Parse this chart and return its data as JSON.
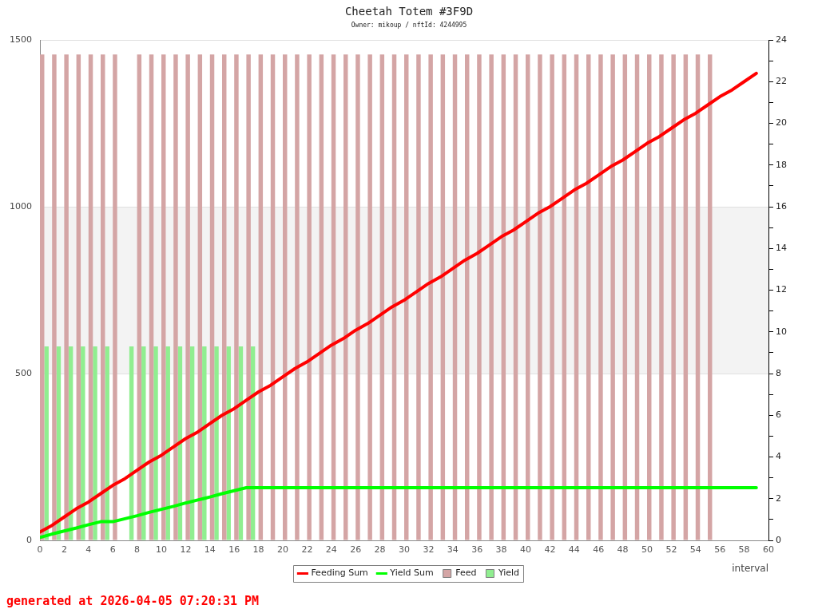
{
  "chart_data": {
    "type": "bar",
    "title": "Cheetah Totem #3F9D",
    "subtitle": "Owner: mikoup / nftId: 4244995",
    "xlabel": "interval",
    "annotations": [
      "generated at 2026-04-05 07:20:31 PM"
    ],
    "xlim": [
      0,
      60
    ],
    "xticks": [
      0,
      2,
      4,
      6,
      8,
      10,
      12,
      14,
      16,
      18,
      20,
      22,
      24,
      26,
      28,
      30,
      32,
      34,
      36,
      38,
      40,
      42,
      44,
      46,
      48,
      50,
      52,
      54,
      56,
      58,
      60
    ],
    "ylim": [
      0,
      1500
    ],
    "yticks": [
      0,
      500,
      1000,
      1500
    ],
    "y2lim": [
      0,
      24
    ],
    "y2ticks": [
      0,
      {
        "value": 1,
        "label": null
      },
      2,
      {
        "value": 3,
        "label": null
      },
      4,
      {
        "value": 5,
        "label": null
      },
      6,
      {
        "value": 7,
        "label": null
      },
      8,
      {
        "value": 9,
        "label": null
      },
      10,
      {
        "value": 11,
        "label": null
      },
      12,
      {
        "value": 13,
        "label": null
      },
      14,
      {
        "value": 15,
        "label": null
      },
      16,
      {
        "value": 17,
        "label": null
      },
      18,
      {
        "value": 19,
        "label": null
      },
      20,
      {
        "value": 21,
        "label": null
      },
      22,
      {
        "value": 23,
        "label": null
      },
      24
    ],
    "grid": "y",
    "legend": "bottom",
    "bands": [
      {
        "axis": "y",
        "from": 500,
        "to": 1000,
        "color": "#f3f3f3"
      }
    ],
    "series": [
      {
        "name": "Feeding Sum",
        "type": "line",
        "color": "#ff0000",
        "x": [
          0,
          1,
          2,
          3,
          4,
          5,
          6,
          7,
          8,
          9,
          10,
          11,
          12,
          13,
          14,
          15,
          16,
          17,
          18,
          19,
          20,
          21,
          22,
          23,
          24,
          25,
          26,
          27,
          28,
          29,
          30,
          31,
          32,
          33,
          34,
          35,
          36,
          37,
          38,
          39,
          40,
          41,
          42,
          43,
          44,
          45,
          46,
          47,
          48,
          49,
          50,
          51,
          52,
          53,
          54,
          55,
          56,
          57,
          58,
          59
        ],
        "values": [
          25,
          45,
          70,
          95,
          115,
          140,
          165,
          185,
          210,
          235,
          255,
          280,
          305,
          325,
          350,
          375,
          395,
          420,
          445,
          465,
          490,
          515,
          535,
          560,
          585,
          605,
          630,
          650,
          675,
          700,
          720,
          745,
          770,
          790,
          815,
          840,
          860,
          885,
          910,
          930,
          955,
          980,
          1000,
          1025,
          1050,
          1070,
          1095,
          1120,
          1140,
          1165,
          1190,
          1210,
          1235,
          1260,
          1280,
          1305,
          1330,
          1350,
          1375,
          1400
        ]
      },
      {
        "name": "Yield Sum",
        "type": "line",
        "color": "#00ff00",
        "x": [
          0,
          1,
          2,
          3,
          4,
          5,
          6,
          7,
          8,
          9,
          10,
          11,
          12,
          13,
          14,
          15,
          16,
          17,
          18,
          19,
          20,
          21,
          22,
          23,
          24,
          25,
          26,
          27,
          28,
          29,
          30,
          31,
          32,
          33,
          34,
          35,
          36,
          37,
          38,
          39,
          40,
          41,
          42,
          43,
          44,
          45,
          46,
          47,
          48,
          49,
          50,
          51,
          52,
          53,
          54,
          55,
          56,
          57,
          58,
          59
        ],
        "values": [
          9,
          19,
          28,
          37,
          47,
          56,
          56,
          65,
          74,
          84,
          93,
          102,
          112,
          121,
          130,
          140,
          149,
          158,
          158,
          158,
          158,
          158,
          158,
          158,
          158,
          158,
          158,
          158,
          158,
          158,
          158,
          158,
          158,
          158,
          158,
          158,
          158,
          158,
          158,
          158,
          158,
          158,
          158,
          158,
          158,
          158,
          158,
          158,
          158,
          158,
          158,
          158,
          158,
          158,
          158,
          158,
          158,
          158,
          158,
          158
        ]
      },
      {
        "name": "Feed",
        "axis": "y2",
        "color": "#d4a5a5",
        "x": [
          0,
          1,
          2,
          3,
          4,
          5,
          6,
          8,
          9,
          10,
          11,
          12,
          13,
          14,
          15,
          16,
          17,
          18,
          19,
          20,
          21,
          22,
          23,
          24,
          25,
          26,
          27,
          28,
          29,
          30,
          31,
          32,
          33,
          34,
          35,
          36,
          37,
          38,
          39,
          40,
          41,
          42,
          43,
          44,
          45,
          46,
          47,
          48,
          49,
          50,
          51,
          52,
          53,
          54,
          55
        ],
        "values": [
          23.3,
          23.3,
          23.3,
          23.3,
          23.3,
          23.3,
          23.3,
          23.3,
          23.3,
          23.3,
          23.3,
          23.3,
          23.3,
          23.3,
          23.3,
          23.3,
          23.3,
          23.3,
          23.3,
          23.3,
          23.3,
          23.3,
          23.3,
          23.3,
          23.3,
          23.3,
          23.3,
          23.3,
          23.3,
          23.3,
          23.3,
          23.3,
          23.3,
          23.3,
          23.3,
          23.3,
          23.3,
          23.3,
          23.3,
          23.3,
          23.3,
          23.3,
          23.3,
          23.3,
          23.3,
          23.3,
          23.3,
          23.3,
          23.3,
          23.3,
          23.3,
          23.3,
          23.3,
          23.3,
          23.3
        ]
      },
      {
        "name": "Yield",
        "axis": "y2",
        "color": "#90ee90",
        "x": [
          0,
          1,
          2,
          3,
          4,
          5,
          7,
          8,
          9,
          10,
          11,
          12,
          13,
          14,
          15,
          16,
          17
        ],
        "values": [
          9.3,
          9.3,
          9.3,
          9.3,
          9.3,
          9.3,
          9.3,
          9.3,
          9.3,
          9.3,
          9.3,
          9.3,
          9.3,
          9.3,
          9.3,
          9.3,
          9.3
        ]
      }
    ]
  }
}
